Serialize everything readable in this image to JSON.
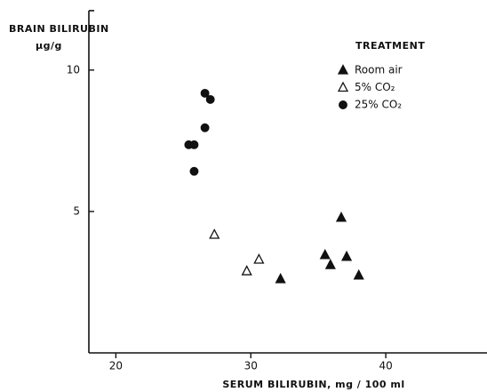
{
  "chart_data": {
    "type": "scatter",
    "ylabel": "BRAIN BILIRUBIN",
    "ylabel_unit": "μg/g",
    "xlabel": "SERUM BILIRUBIN,  mg / 100 ml",
    "legend_title": "TREATMENT",
    "legend": "upper right",
    "xlim": [
      18,
      47.5
    ],
    "xticks": [
      20,
      30,
      40
    ],
    "ylim": [
      0,
      12.1
    ],
    "yticks": [
      5,
      10
    ],
    "series": [
      {
        "name": "Room air",
        "color": "#111111",
        "marker": "triangle",
        "filled": true,
        "x": [
          36.7,
          35.5,
          35.9,
          37.1,
          38.0,
          32.2
        ],
        "values": [
          4.78,
          3.46,
          3.11,
          3.4,
          2.74,
          2.61
        ]
      },
      {
        "name": "5% CO₂",
        "color": "#111111",
        "marker": "triangle",
        "filled": false,
        "x": [
          27.3,
          29.7,
          30.6
        ],
        "values": [
          4.18,
          2.89,
          3.3
        ]
      },
      {
        "name": "25% CO₂",
        "color": "#111111",
        "marker": "circle",
        "filled": true,
        "x": [
          26.6,
          27.0,
          26.6,
          25.4,
          25.8,
          25.8
        ],
        "values": [
          9.18,
          8.96,
          7.96,
          7.36,
          7.36,
          6.42
        ]
      }
    ]
  }
}
